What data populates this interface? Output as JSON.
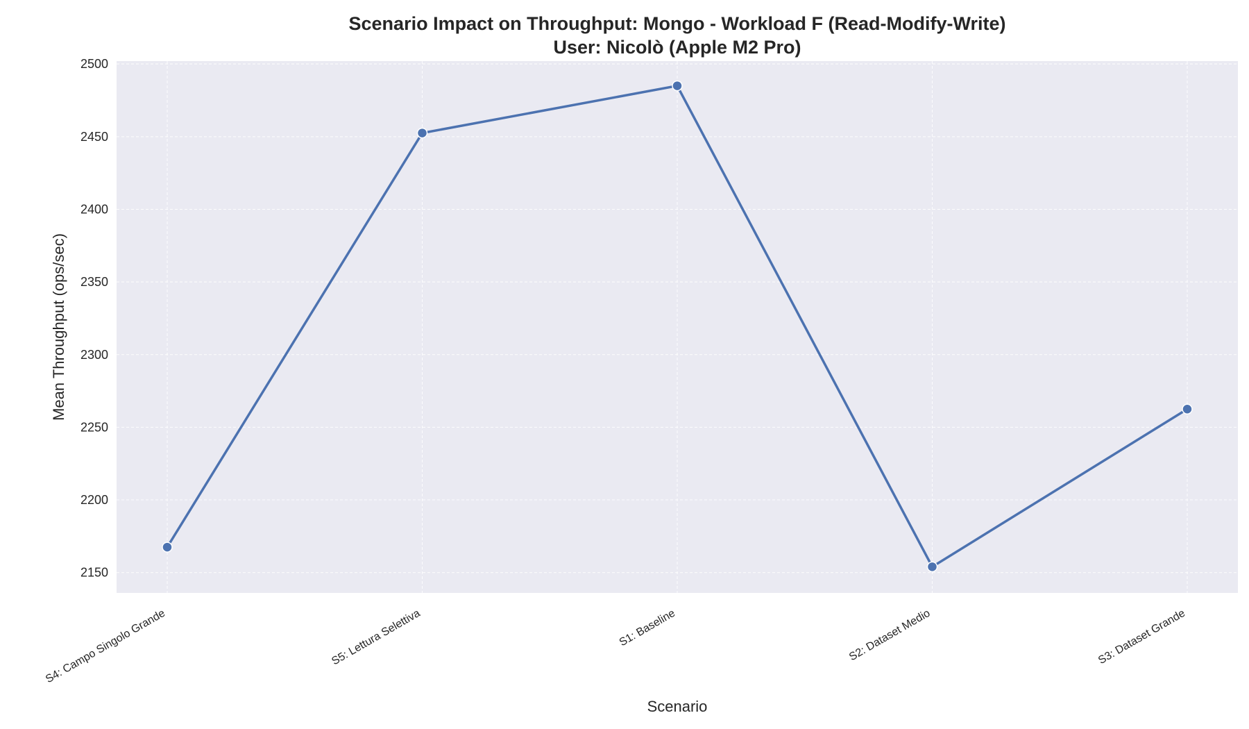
{
  "chart_data": {
    "type": "line",
    "title": "Scenario Impact on Throughput: Mongo - Workload F (Read-Modify-Write)",
    "subtitle": "User: Nicolò (Apple M2 Pro)",
    "xlabel": "Scenario",
    "ylabel": "Mean Throughput (ops/sec)",
    "categories": [
      "S4: Campo Singolo Grande",
      "S5: Lettura Selettiva",
      "S1: Baseline",
      "S2: Dataset Medio",
      "S3: Dataset Grande"
    ],
    "series": [
      {
        "values": [
          2167.5,
          2452.5,
          2485,
          2154,
          2262.5
        ]
      }
    ],
    "yticks": [
      2150,
      2200,
      2250,
      2300,
      2350,
      2400,
      2450,
      2500
    ],
    "ylim": [
      2136,
      2502
    ],
    "grid": true,
    "legend": "none",
    "colors": {
      "line": "#4c72b0",
      "plot_bg": "#eaeaf2",
      "grid": "#ffffff",
      "marker_edge": "#ffffff"
    }
  }
}
